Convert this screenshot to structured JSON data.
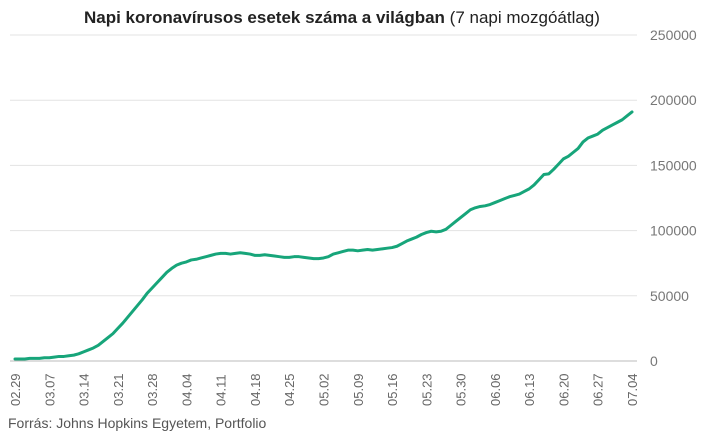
{
  "chart_data": {
    "type": "line",
    "title": "Napi koronavírusos esetek száma a világban",
    "subtitle": "(7 napi mozgóátlag)",
    "source": "Forrás: Johns Hopkins Egyetem, Portfolio",
    "xlabel": "",
    "ylabel": "",
    "ylim": [
      0,
      250000
    ],
    "yticks": [
      0,
      50000,
      100000,
      150000,
      200000,
      250000
    ],
    "ytick_labels": [
      "0",
      "50000",
      "100000",
      "150000",
      "200000",
      "250000"
    ],
    "grid": true,
    "x_tick_labels": [
      "02.29",
      "03.07",
      "03.14",
      "03.21",
      "03.28",
      "04.04",
      "04.11",
      "04.18",
      "04.25",
      "05.02",
      "05.09",
      "05.16",
      "05.23",
      "05.30",
      "06.06",
      "06.13",
      "06.20",
      "06.27",
      "07.04"
    ],
    "x_start": "02.29",
    "x_end": "07.09",
    "line_color": "#17a57a",
    "series": [
      {
        "values": [
          1500,
          1500,
          1500,
          2000,
          2000,
          2000,
          2500,
          2500,
          3000,
          3500,
          3500,
          4000,
          4500,
          5500,
          7000,
          8500,
          10000,
          12000,
          15000,
          18000,
          21000,
          25000,
          29000,
          33500,
          38000,
          42500,
          47000,
          52000,
          56000,
          60000,
          64000,
          68000,
          71000,
          73500,
          75000,
          76000,
          77500,
          78000,
          79000,
          80000,
          81000,
          82000,
          82500,
          82500,
          82000,
          82500,
          83000,
          82500,
          82000,
          81000,
          81000,
          81500,
          81000,
          80500,
          80000,
          79500,
          79500,
          80000,
          80000,
          79500,
          79000,
          78500,
          78500,
          79000,
          80000,
          82000,
          83000,
          84000,
          85000,
          85000,
          84500,
          85000,
          85500,
          85000,
          85500,
          86000,
          86500,
          87000,
          88000,
          90000,
          92000,
          93500,
          95000,
          97000,
          98500,
          99500,
          99000,
          99500,
          101000,
          104000,
          107000,
          110000,
          113000,
          116000,
          117500,
          118500,
          119000,
          120000,
          121500,
          123000,
          124500,
          126000,
          127000,
          128000,
          130000,
          132000,
          135000,
          139000,
          143000,
          143500,
          147000,
          151000,
          155000,
          157000,
          160000,
          163000,
          168000,
          171000,
          172500,
          174000,
          177000,
          179000,
          181000,
          183000,
          185000,
          188000,
          191000
        ]
      }
    ]
  }
}
